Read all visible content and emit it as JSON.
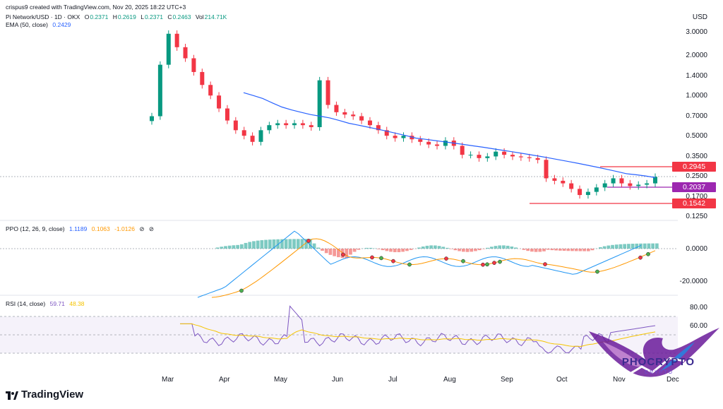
{
  "header": {
    "created_by": "crispus9 created with TradingView.com, Nov 20, 2025 18:22 UTC+3"
  },
  "price_legend": {
    "symbol": "Pi Network/USD · 1D · OKX",
    "o_label": "O",
    "o": "0.2371",
    "h_label": "H",
    "h": "0.2619",
    "l_label": "L",
    "l": "0.2371",
    "c_label": "C",
    "c": "0.2463",
    "vol_label": "Vol",
    "vol": "214.71K"
  },
  "ema_legend": {
    "label": "EMA (50, close)",
    "value": "0.2429"
  },
  "price_axis": {
    "currency": "USD",
    "ticks": [
      "3.0000",
      "2.0000",
      "1.4000",
      "1.0000",
      "0.7000",
      "0.5000",
      "0.3500",
      "0.2500",
      "0.1700",
      "0.1250"
    ]
  },
  "price_tags": [
    {
      "value": "0.2945",
      "color": "#f23645"
    },
    {
      "value": "0.2037",
      "color": "#9c27b0"
    },
    {
      "value": "0.1542",
      "color": "#f23645"
    }
  ],
  "ppo_legend": {
    "label": "PPO (12, 26, 9, close)",
    "v1": "1.1189",
    "v2": "0.1063",
    "v3": "-1.0126"
  },
  "ppo_axis": {
    "ticks": [
      "0.0000",
      "-20.0000"
    ]
  },
  "rsi_legend": {
    "label": "RSI (14, close)",
    "v1": "59.71",
    "v2": "48.38"
  },
  "rsi_axis": {
    "ticks": [
      "80.00",
      "60.00"
    ]
  },
  "time_axis": {
    "labels": [
      "Mar",
      "Apr",
      "May",
      "Jun",
      "Jul",
      "Aug",
      "Sep",
      "Oct",
      "Nov",
      "Dec"
    ]
  },
  "branding": {
    "tradingview": "TradingView",
    "watermark": "PHOCRYPTO",
    "watermark_sub": "CRYPTO"
  },
  "colors": {
    "up": "#089981",
    "down": "#f23645",
    "ema": "#2962ff",
    "rsi": "#7e57c2",
    "rsi_ma": "#f5c400"
  },
  "chart_data": {
    "type": "candlestick",
    "ema_last": 0.2429,
    "log_scale": true,
    "ylim": [
      0.12,
      3.3
    ],
    "close_series": [
      0.7,
      1.7,
      2.9,
      2.3,
      1.9,
      1.5,
      1.2,
      1.0,
      0.8,
      0.65,
      0.55,
      0.5,
      0.45,
      0.55,
      0.6,
      0.62,
      0.6,
      0.62,
      0.6,
      0.58,
      1.3,
      0.85,
      0.75,
      0.72,
      0.7,
      0.65,
      0.6,
      0.55,
      0.5,
      0.48,
      0.5,
      0.47,
      0.45,
      0.43,
      0.42,
      0.46,
      0.42,
      0.36,
      0.36,
      0.34,
      0.35,
      0.38,
      0.36,
      0.35,
      0.345,
      0.34,
      0.33,
      0.24,
      0.23,
      0.22,
      0.2,
      0.18,
      0.19,
      0.205,
      0.22,
      0.24,
      0.22,
      0.21,
      0.215,
      0.22,
      0.2463
    ],
    "ema_series": [
      1.05,
      1.0,
      0.95,
      0.88,
      0.82,
      0.78,
      0.75,
      0.72,
      0.7,
      0.68,
      0.65,
      0.62,
      0.6,
      0.58,
      0.56,
      0.54,
      0.52,
      0.5,
      0.48,
      0.47,
      0.46,
      0.45,
      0.44,
      0.43,
      0.42,
      0.41,
      0.4,
      0.39,
      0.38,
      0.37,
      0.36,
      0.35,
      0.34,
      0.33,
      0.32,
      0.31,
      0.3,
      0.29,
      0.28,
      0.27,
      0.26,
      0.255,
      0.25,
      0.2429
    ],
    "levels": [
      0.2945,
      0.2037,
      0.1542
    ]
  }
}
